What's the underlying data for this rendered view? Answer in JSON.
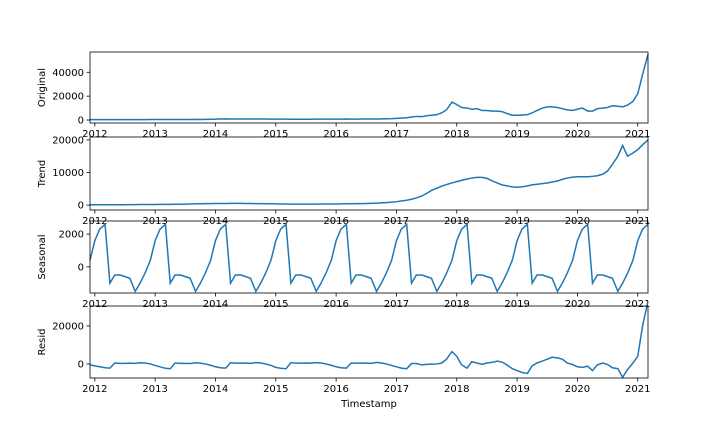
{
  "chart_data": [
    {
      "type": "line",
      "ylabel": "Original",
      "color": "#1f77b4",
      "x": [
        2011.92,
        2012,
        2012.08,
        2012.17,
        2012.25,
        2012.33,
        2012.42,
        2012.5,
        2012.58,
        2012.67,
        2012.75,
        2012.83,
        2012.92,
        2013,
        2013.08,
        2013.17,
        2013.25,
        2013.33,
        2013.42,
        2013.5,
        2013.58,
        2013.67,
        2013.75,
        2013.83,
        2013.92,
        2014,
        2014.08,
        2014.17,
        2014.25,
        2014.33,
        2014.42,
        2014.5,
        2014.58,
        2014.67,
        2014.75,
        2014.83,
        2014.92,
        2015,
        2015.08,
        2015.17,
        2015.25,
        2015.33,
        2015.42,
        2015.5,
        2015.58,
        2015.67,
        2015.75,
        2015.83,
        2015.92,
        2016,
        2016.08,
        2016.17,
        2016.25,
        2016.33,
        2016.42,
        2016.5,
        2016.58,
        2016.67,
        2016.75,
        2016.83,
        2016.92,
        2017,
        2017.08,
        2017.17,
        2017.25,
        2017.33,
        2017.42,
        2017.5,
        2017.58,
        2017.67,
        2017.75,
        2017.83,
        2017.92,
        2018,
        2018.08,
        2018.17,
        2018.25,
        2018.33,
        2018.42,
        2018.5,
        2018.58,
        2018.67,
        2018.75,
        2018.83,
        2018.92,
        2019,
        2019.08,
        2019.17,
        2019.25,
        2019.33,
        2019.42,
        2019.5,
        2019.58,
        2019.67,
        2019.75,
        2019.83,
        2019.92,
        2020,
        2020.08,
        2020.17,
        2020.25,
        2020.33,
        2020.42,
        2020.5,
        2020.58,
        2020.67,
        2020.75,
        2020.83,
        2020.92,
        2021,
        2021.08,
        2021.17
      ],
      "values": [
        300,
        300,
        300,
        350,
        350,
        300,
        300,
        300,
        300,
        300,
        300,
        350,
        400,
        400,
        400,
        450,
        400,
        400,
        400,
        400,
        400,
        500,
        450,
        500,
        600,
        700,
        900,
        1000,
        800,
        800,
        900,
        900,
        800,
        800,
        900,
        800,
        700,
        700,
        700,
        700,
        650,
        650,
        650,
        600,
        650,
        700,
        700,
        750,
        700,
        700,
        700,
        800,
        700,
        750,
        800,
        850,
        850,
        900,
        1000,
        1100,
        1200,
        1400,
        1600,
        1900,
        2500,
        3000,
        2800,
        3600,
        4000,
        4500,
        6000,
        8500,
        15000,
        13000,
        10500,
        10000,
        9000,
        9500,
        8000,
        8000,
        7500,
        7500,
        7000,
        5500,
        4000,
        4000,
        4200,
        4500,
        6000,
        8000,
        10000,
        11000,
        11000,
        10500,
        9500,
        8500,
        8000,
        9000,
        10000,
        7500,
        7500,
        9500,
        10000,
        10500,
        12000,
        11500,
        11000,
        12500,
        15500,
        22000,
        38000,
        55000
      ],
      "xlim": [
        2011.92,
        2021.17
      ],
      "xticks": [
        2012,
        2013,
        2014,
        2015,
        2016,
        2017,
        2018,
        2019,
        2020,
        2021
      ],
      "ylim": [
        -2500,
        57000
      ],
      "yticks": [
        0,
        20000,
        40000
      ]
    },
    {
      "type": "line",
      "ylabel": "Trend",
      "color": "#1f77b4",
      "x": [
        2011.92,
        2012,
        2012.08,
        2012.17,
        2012.25,
        2012.33,
        2012.42,
        2012.5,
        2012.58,
        2012.67,
        2012.75,
        2012.83,
        2012.92,
        2013,
        2013.08,
        2013.17,
        2013.25,
        2013.33,
        2013.42,
        2013.5,
        2013.58,
        2013.67,
        2013.75,
        2013.83,
        2013.92,
        2014,
        2014.08,
        2014.17,
        2014.25,
        2014.33,
        2014.42,
        2014.5,
        2014.58,
        2014.67,
        2014.75,
        2014.83,
        2014.92,
        2015,
        2015.08,
        2015.17,
        2015.25,
        2015.33,
        2015.42,
        2015.5,
        2015.58,
        2015.67,
        2015.75,
        2015.83,
        2015.92,
        2016,
        2016.08,
        2016.17,
        2016.25,
        2016.33,
        2016.42,
        2016.5,
        2016.58,
        2016.67,
        2016.75,
        2016.83,
        2016.92,
        2017,
        2017.08,
        2017.17,
        2017.25,
        2017.33,
        2017.42,
        2017.5,
        2017.58,
        2017.67,
        2017.75,
        2017.83,
        2017.92,
        2018,
        2018.08,
        2018.17,
        2018.25,
        2018.33,
        2018.42,
        2018.5,
        2018.58,
        2018.67,
        2018.75,
        2018.83,
        2018.92,
        2019,
        2019.08,
        2019.17,
        2019.25,
        2019.33,
        2019.42,
        2019.5,
        2019.58,
        2019.67,
        2019.75,
        2019.83,
        2019.92,
        2020,
        2020.08,
        2020.17,
        2020.25,
        2020.33,
        2020.42,
        2020.5,
        2020.58,
        2020.67,
        2020.75,
        2020.83,
        2020.92,
        2021,
        2021.08,
        2021.17
      ],
      "values": [
        100,
        100,
        100,
        100,
        100,
        100,
        120,
        130,
        150,
        160,
        170,
        180,
        190,
        200,
        210,
        220,
        230,
        250,
        280,
        320,
        360,
        400,
        420,
        440,
        460,
        480,
        500,
        510,
        520,
        530,
        520,
        500,
        480,
        460,
        440,
        420,
        400,
        380,
        360,
        340,
        320,
        310,
        300,
        300,
        310,
        320,
        330,
        340,
        350,
        360,
        380,
        400,
        420,
        440,
        460,
        500,
        540,
        600,
        680,
        780,
        900,
        1050,
        1250,
        1500,
        1800,
        2200,
        2800,
        3600,
        4500,
        5200,
        5800,
        6300,
        6800,
        7200,
        7600,
        8000,
        8300,
        8500,
        8500,
        8200,
        7500,
        6800,
        6200,
        5900,
        5600,
        5500,
        5600,
        5900,
        6200,
        6400,
        6600,
        6800,
        7100,
        7400,
        7900,
        8300,
        8600,
        8700,
        8700,
        8700,
        8800,
        9000,
        9500,
        10500,
        12500,
        15000,
        18300,
        15000,
        16000,
        17000,
        18500,
        20000
      ],
      "xlim": [
        2011.92,
        2021.17
      ],
      "xticks": [
        2012,
        2013,
        2014,
        2015,
        2016,
        2017,
        2018,
        2019,
        2020,
        2021
      ],
      "ylim": [
        -1500,
        20900
      ],
      "yticks": [
        0,
        10000,
        20000
      ]
    },
    {
      "type": "line",
      "ylabel": "Seasonal",
      "color": "#1f77b4",
      "x": [
        2011.92,
        2012,
        2012.08,
        2012.17,
        2012.25,
        2012.33,
        2012.42,
        2012.5,
        2012.58,
        2012.67,
        2012.75,
        2012.83,
        2012.92,
        2013,
        2013.08,
        2013.17,
        2013.25,
        2013.33,
        2013.42,
        2013.5,
        2013.58,
        2013.67,
        2013.75,
        2013.83,
        2013.92,
        2014,
        2014.08,
        2014.17,
        2014.25,
        2014.33,
        2014.42,
        2014.5,
        2014.58,
        2014.67,
        2014.75,
        2014.83,
        2014.92,
        2015,
        2015.08,
        2015.17,
        2015.25,
        2015.33,
        2015.42,
        2015.5,
        2015.58,
        2015.67,
        2015.75,
        2015.83,
        2015.92,
        2016,
        2016.08,
        2016.17,
        2016.25,
        2016.33,
        2016.42,
        2016.5,
        2016.58,
        2016.67,
        2016.75,
        2016.83,
        2016.92,
        2017,
        2017.08,
        2017.17,
        2017.25,
        2017.33,
        2017.42,
        2017.5,
        2017.58,
        2017.67,
        2017.75,
        2017.83,
        2017.92,
        2018,
        2018.08,
        2018.17,
        2018.25,
        2018.33,
        2018.42,
        2018.5,
        2018.58,
        2018.67,
        2018.75,
        2018.83,
        2018.92,
        2019,
        2019.08,
        2019.17,
        2019.25,
        2019.33,
        2019.42,
        2019.5,
        2019.58,
        2019.67,
        2019.75,
        2019.83,
        2019.92,
        2020,
        2020.08,
        2020.17,
        2020.25,
        2020.33,
        2020.42,
        2020.5,
        2020.58,
        2020.67,
        2020.75,
        2020.83,
        2020.92,
        2021,
        2021.08,
        2021.17
      ],
      "values": [
        400,
        1600,
        2300,
        2600,
        -1000,
        -500,
        -500,
        -600,
        -700,
        -1500,
        -1000,
        -400,
        400,
        1600,
        2300,
        2600,
        -1000,
        -500,
        -500,
        -600,
        -700,
        -1500,
        -1000,
        -400,
        400,
        1600,
        2300,
        2600,
        -1000,
        -500,
        -500,
        -600,
        -700,
        -1500,
        -1000,
        -400,
        400,
        1600,
        2300,
        2600,
        -1000,
        -500,
        -500,
        -600,
        -700,
        -1500,
        -1000,
        -400,
        400,
        1600,
        2300,
        2600,
        -1000,
        -500,
        -500,
        -600,
        -700,
        -1500,
        -1000,
        -400,
        400,
        1600,
        2300,
        2600,
        -1000,
        -500,
        -500,
        -600,
        -700,
        -1500,
        -1000,
        -400,
        400,
        1600,
        2300,
        2600,
        -1000,
        -500,
        -500,
        -600,
        -700,
        -1500,
        -1000,
        -400,
        400,
        1600,
        2300,
        2600,
        -1000,
        -500,
        -500,
        -600,
        -700,
        -1500,
        -1000,
        -400,
        400,
        1600,
        2300,
        2600,
        -1000,
        -500,
        -500,
        -600,
        -700,
        -1500,
        -1000,
        -400,
        400,
        1600,
        2300,
        2600
      ],
      "xlim": [
        2011.92,
        2021.17
      ],
      "xticks": [
        2012,
        2013,
        2014,
        2015,
        2016,
        2017,
        2018,
        2019,
        2020,
        2021
      ],
      "ylim": [
        -1600,
        2800
      ],
      "yticks": [
        0,
        2000
      ]
    },
    {
      "type": "line",
      "ylabel": "Resid",
      "xlabel": "Timestamp",
      "color": "#1f77b4",
      "x": [
        2011.92,
        2012,
        2012.08,
        2012.17,
        2012.25,
        2012.33,
        2012.42,
        2012.5,
        2012.58,
        2012.67,
        2012.75,
        2012.83,
        2012.92,
        2013,
        2013.08,
        2013.17,
        2013.25,
        2013.33,
        2013.42,
        2013.5,
        2013.58,
        2013.67,
        2013.75,
        2013.83,
        2013.92,
        2014,
        2014.08,
        2014.17,
        2014.25,
        2014.33,
        2014.42,
        2014.5,
        2014.58,
        2014.67,
        2014.75,
        2014.83,
        2014.92,
        2015,
        2015.08,
        2015.17,
        2015.25,
        2015.33,
        2015.42,
        2015.5,
        2015.58,
        2015.67,
        2015.75,
        2015.83,
        2015.92,
        2016,
        2016.08,
        2016.17,
        2016.25,
        2016.33,
        2016.42,
        2016.5,
        2016.58,
        2016.67,
        2016.75,
        2016.83,
        2016.92,
        2017,
        2017.08,
        2017.17,
        2017.25,
        2017.33,
        2017.42,
        2017.5,
        2017.58,
        2017.67,
        2017.75,
        2017.83,
        2017.92,
        2018,
        2018.08,
        2018.17,
        2018.25,
        2018.33,
        2018.42,
        2018.5,
        2018.58,
        2018.67,
        2018.75,
        2018.83,
        2018.92,
        2019,
        2019.08,
        2019.17,
        2019.25,
        2019.33,
        2019.42,
        2019.5,
        2019.58,
        2019.67,
        2019.75,
        2019.83,
        2019.92,
        2020,
        2020.08,
        2020.17,
        2020.25,
        2020.33,
        2020.42,
        2020.5,
        2020.58,
        2020.67,
        2020.75,
        2020.83,
        2020.92,
        2021,
        2021.08,
        2021.17
      ],
      "values": [
        -500,
        -1000,
        -1500,
        -2000,
        -2200,
        500,
        300,
        300,
        400,
        300,
        600,
        500,
        0,
        -800,
        -1500,
        -2300,
        -2500,
        500,
        300,
        300,
        200,
        600,
        400,
        0,
        -700,
        -1500,
        -2000,
        -2200,
        700,
        400,
        400,
        500,
        300,
        700,
        500,
        0,
        -800,
        -1800,
        -2300,
        -2500,
        700,
        400,
        400,
        500,
        400,
        700,
        500,
        0,
        -700,
        -1500,
        -2000,
        -2200,
        500,
        400,
        400,
        500,
        300,
        800,
        500,
        0,
        -800,
        -1500,
        -2200,
        -2500,
        200,
        200,
        -500,
        -200,
        -100,
        0,
        500,
        2500,
        6500,
        4000,
        -500,
        -2200,
        1200,
        500,
        -200,
        500,
        800,
        1500,
        1000,
        -500,
        -2500,
        -3500,
        -4500,
        -5000,
        -1000,
        500,
        1500,
        2500,
        3500,
        3200,
        2500,
        500,
        -300,
        -1500,
        -1800,
        -1200,
        -3500,
        -500,
        500,
        -300,
        -2000,
        -2500,
        -7000,
        -3000,
        500,
        4000,
        20000,
        33000
      ],
      "xlim": [
        2011.92,
        2021.17
      ],
      "xticks": [
        2012,
        2013,
        2014,
        2015,
        2016,
        2017,
        2018,
        2019,
        2020,
        2021
      ],
      "ylim": [
        -7400,
        30500
      ],
      "yticks": [
        0,
        20000
      ]
    }
  ]
}
